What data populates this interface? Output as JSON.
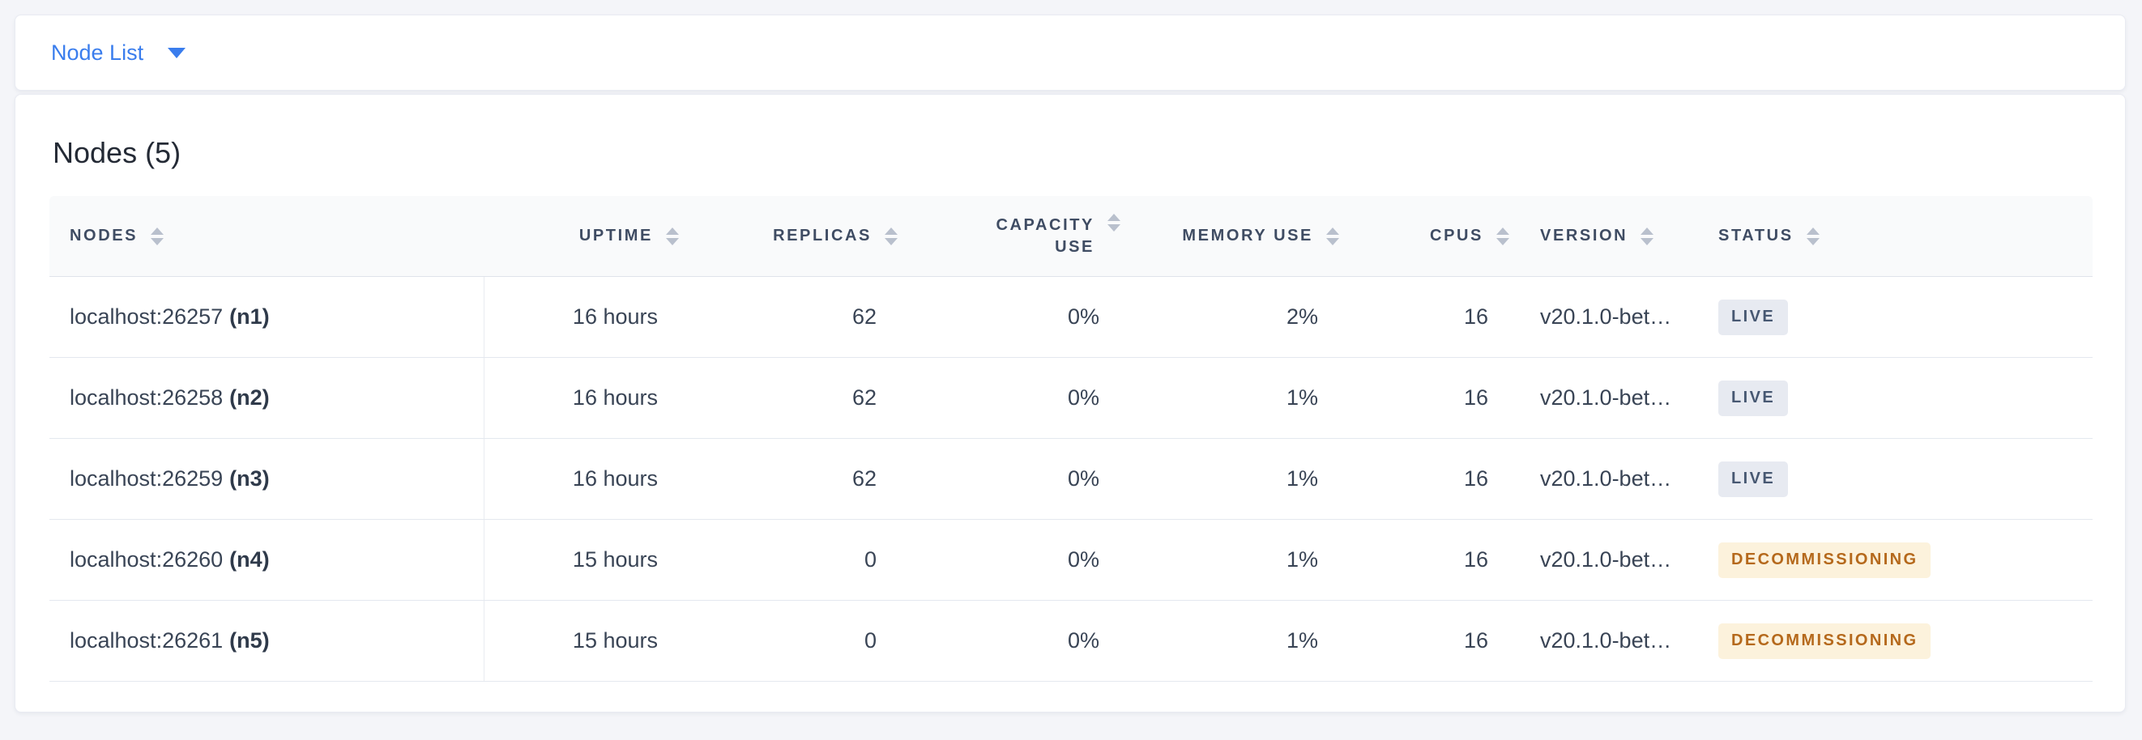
{
  "toolbar": {
    "view_selector": {
      "label": "Node List"
    }
  },
  "main": {
    "title": "Nodes (5)"
  },
  "table": {
    "columns": [
      {
        "key": "nodes",
        "label": "Nodes",
        "align": "left"
      },
      {
        "key": "uptime",
        "label": "Uptime",
        "align": "right"
      },
      {
        "key": "replicas",
        "label": "Replicas",
        "align": "right"
      },
      {
        "key": "capacity_use",
        "label": "Capacity Use",
        "align": "right"
      },
      {
        "key": "memory_use",
        "label": "Memory Use",
        "align": "right"
      },
      {
        "key": "cpus",
        "label": "CPUs",
        "align": "right"
      },
      {
        "key": "version",
        "label": "Version",
        "align": "left"
      },
      {
        "key": "status",
        "label": "Status",
        "align": "left"
      }
    ],
    "rows": [
      {
        "address": "localhost:26257",
        "node_id": "(n1)",
        "uptime": "16 hours",
        "replicas": "62",
        "capacity_use": "0%",
        "memory_use": "2%",
        "cpus": "16",
        "version": "v20.1.0-bet…",
        "status": "LIVE"
      },
      {
        "address": "localhost:26258",
        "node_id": "(n2)",
        "uptime": "16 hours",
        "replicas": "62",
        "capacity_use": "0%",
        "memory_use": "1%",
        "cpus": "16",
        "version": "v20.1.0-bet…",
        "status": "LIVE"
      },
      {
        "address": "localhost:26259",
        "node_id": "(n3)",
        "uptime": "16 hours",
        "replicas": "62",
        "capacity_use": "0%",
        "memory_use": "1%",
        "cpus": "16",
        "version": "v20.1.0-bet…",
        "status": "LIVE"
      },
      {
        "address": "localhost:26260",
        "node_id": "(n4)",
        "uptime": "15 hours",
        "replicas": "0",
        "capacity_use": "0%",
        "memory_use": "1%",
        "cpus": "16",
        "version": "v20.1.0-bet…",
        "status": "DECOMMISSIONING"
      },
      {
        "address": "localhost:26261",
        "node_id": "(n5)",
        "uptime": "15 hours",
        "replicas": "0",
        "capacity_use": "0%",
        "memory_use": "1%",
        "cpus": "16",
        "version": "v20.1.0-bet…",
        "status": "DECOMMISSIONING"
      }
    ]
  },
  "colors": {
    "accent_blue": "#3a7ded",
    "page_background": "#f4f5f9",
    "header_text": "#3f4c63",
    "cell_text": "#394455",
    "badge_live_bg": "#e7eaf1",
    "badge_live_text": "#475872",
    "badge_decommissioning_bg": "#fcf2dc",
    "badge_decommissioning_text": "#b5691c"
  }
}
